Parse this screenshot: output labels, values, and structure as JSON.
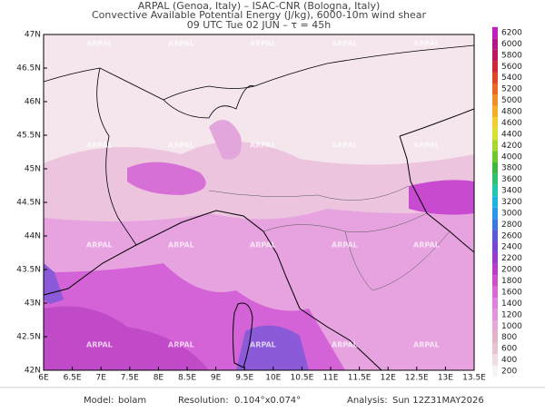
{
  "header": {
    "line1": "ARPAL (Genoa, Italy)  –  ISAC-CNR (Bologna, Italy)",
    "line2": "Convective Available Potential Energy (J/kg), 6000-10m wind shear",
    "line3": "09 UTC Tue 02 JUN  –  τ = 45h"
  },
  "map": {
    "watermark": "ARPAL",
    "lon_ticks": [
      "6E",
      "6.5E",
      "7E",
      "7.5E",
      "8E",
      "8.5E",
      "9E",
      "9.5E",
      "10E",
      "10.5E",
      "11E",
      "11.5E",
      "12E",
      "12.5E",
      "13E",
      "13.5E"
    ],
    "lat_ticks": [
      "42N",
      "42.5N",
      "43N",
      "43.5N",
      "44N",
      "44.5N",
      "45N",
      "45.5N",
      "46N",
      "46.5N",
      "47N"
    ]
  },
  "colorbar": {
    "levels": [
      200,
      400,
      600,
      800,
      1000,
      1200,
      1400,
      1600,
      1800,
      2000,
      2200,
      2400,
      2600,
      2800,
      3000,
      3200,
      3400,
      3600,
      3800,
      4000,
      4200,
      4400,
      4600,
      4800,
      5000,
      5200,
      5400,
      5600,
      5800,
      6000,
      6200
    ],
    "colors": [
      "#f5f5f5",
      "#f0dde3",
      "#e8c4d0",
      "#e3b3cc",
      "#e6a8d9",
      "#e394de",
      "#df80df",
      "#d868d8",
      "#cc4fcc",
      "#b83ec8",
      "#9a3cc8",
      "#7a46d0",
      "#5a5ad8",
      "#3a78e0",
      "#2a98e8",
      "#1ab6e0",
      "#20c8b0",
      "#30c070",
      "#40b840",
      "#70c830",
      "#a8d830",
      "#d8e030",
      "#f0d030",
      "#f5b028",
      "#f09028",
      "#e86a28",
      "#e04628",
      "#d02838",
      "#c01860",
      "#b01890",
      "#c020c0"
    ]
  },
  "footer": {
    "model_label": "Model:",
    "model": "bolam",
    "resolution_label": "Resolution:",
    "resolution": "0.104°x0.074°",
    "analysis_label": "Analysis:",
    "analysis": "Sun 12Z31MAY2026"
  }
}
